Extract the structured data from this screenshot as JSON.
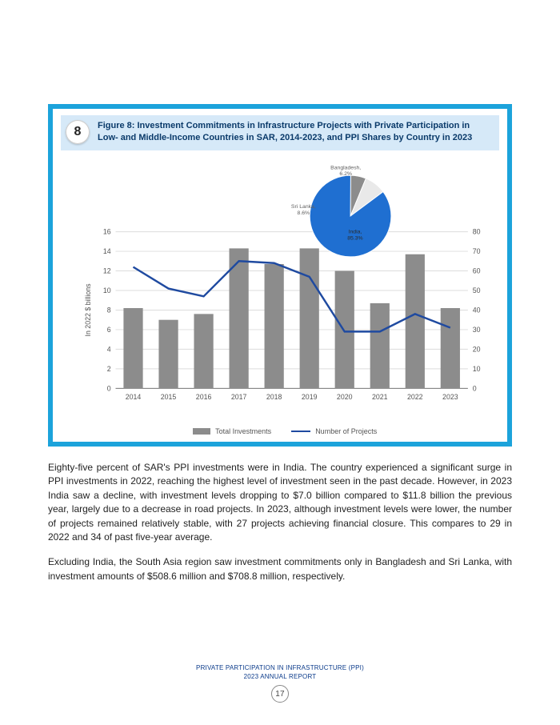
{
  "figure": {
    "number": "8",
    "title": "Figure 8: Investment Commitments in Infrastructure Projects with Private Participation in Low- and Middle-Income Countries in SAR, 2014-2023, and PPI Shares by Country in 2023",
    "chart": {
      "type": "bar+line+pie",
      "years": [
        "2014",
        "2015",
        "2016",
        "2017",
        "2018",
        "2019",
        "2020",
        "2021",
        "2022",
        "2023"
      ],
      "bar_values": [
        8.2,
        7.0,
        7.6,
        14.3,
        12.7,
        14.3,
        12.0,
        8.7,
        13.7,
        8.2
      ],
      "line_values": [
        62,
        51,
        47,
        65,
        64,
        57,
        29,
        29,
        38,
        31
      ],
      "bar_color": "#8c8c8c",
      "line_color": "#1f4aa0",
      "grid_color": "#dcdcdc",
      "axis_color": "#666666",
      "y_left": {
        "label": "In 2022 $ billions",
        "min": 0,
        "max": 16,
        "step": 2,
        "ticks": [
          0,
          2,
          4,
          6,
          8,
          10,
          12,
          14,
          16
        ]
      },
      "y_right": {
        "min": 0,
        "max": 80,
        "step": 10,
        "ticks": [
          0,
          10,
          20,
          30,
          40,
          50,
          60,
          70,
          80
        ]
      },
      "background_color": "#ffffff",
      "legend": {
        "bar": "Total Investments",
        "line": "Number of Projects"
      },
      "tick_fontsize": 9,
      "label_fontsize": 9
    },
    "pie": {
      "slices": [
        {
          "label": "India,",
          "value_label": "85.3%",
          "value": 85.3,
          "color": "#1f6fd1"
        },
        {
          "label": "Sri Lanka,",
          "value_label": "8.6%",
          "value": 8.6,
          "color": "#e9e9e9"
        },
        {
          "label": "Bangladesh,",
          "value_label": "6.2%",
          "value": 6.2,
          "color": "#8c8c8c"
        }
      ],
      "label_color": "#616161",
      "label_fontsize": 7
    }
  },
  "paragraphs": {
    "p1": "Eighty-five percent of SAR's PPI investments were in India. The country experienced a significant surge in PPI investments in 2022, reaching the highest level of investment seen in the past decade. However, in 2023 India saw a decline, with investment levels dropping to $7.0 billion compared to $11.8 billion the previous year, largely due to a decrease in road projects. In 2023, although investment levels were lower, the number of projects remained relatively stable, with 27 projects achieving financial closure. This compares to 29 in 2022 and 34 of past five-year average.",
    "p2": "Excluding India, the South Asia region saw investment commitments only in Bangladesh and Sri Lanka, with investment amounts of $508.6 million and $708.8 million, respectively."
  },
  "footer": {
    "line1": "PRIVATE PARTICIPATION IN INFRASTRUCTURE (PPI)",
    "line2": "2023 ANNUAL REPORT",
    "page": "17"
  }
}
